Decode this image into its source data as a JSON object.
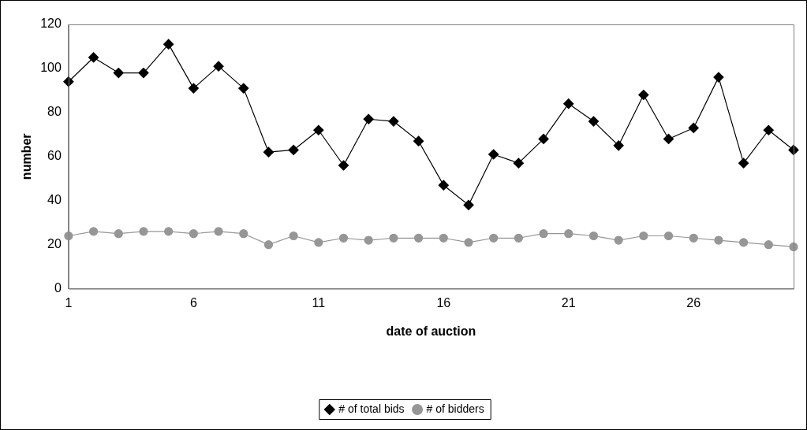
{
  "chart_data": {
    "type": "line",
    "xlabel": "date of auction",
    "ylabel": "number",
    "categories": [
      "1",
      null,
      null,
      null,
      null,
      "6",
      null,
      null,
      null,
      null,
      "11",
      null,
      null,
      null,
      null,
      "16",
      null,
      null,
      null,
      null,
      "21",
      null,
      null,
      null,
      null,
      "26",
      null,
      null,
      null,
      null
    ],
    "series": [
      {
        "name": "# of total bids",
        "color": "#000000",
        "marker": "diamond",
        "values": [
          94,
          105,
          98,
          98,
          111,
          91,
          101,
          91,
          62,
          63,
          72,
          56,
          77,
          76,
          67,
          47,
          38,
          61,
          57,
          68,
          84,
          76,
          65,
          88,
          68,
          73,
          96,
          57,
          72,
          63
        ]
      },
      {
        "name": "# of bidders",
        "color": "#969696",
        "marker": "circle",
        "values": [
          24,
          26,
          25,
          26,
          26,
          25,
          26,
          25,
          20,
          24,
          21,
          23,
          22,
          23,
          23,
          23,
          21,
          23,
          23,
          25,
          25,
          24,
          22,
          24,
          24,
          23,
          22,
          21,
          20,
          19
        ]
      }
    ],
    "ylim": [
      0,
      120
    ],
    "yticks": [
      0,
      20,
      40,
      60,
      80,
      100,
      120
    ],
    "grid": false,
    "legend": "bottom",
    "line_style": "solid"
  }
}
